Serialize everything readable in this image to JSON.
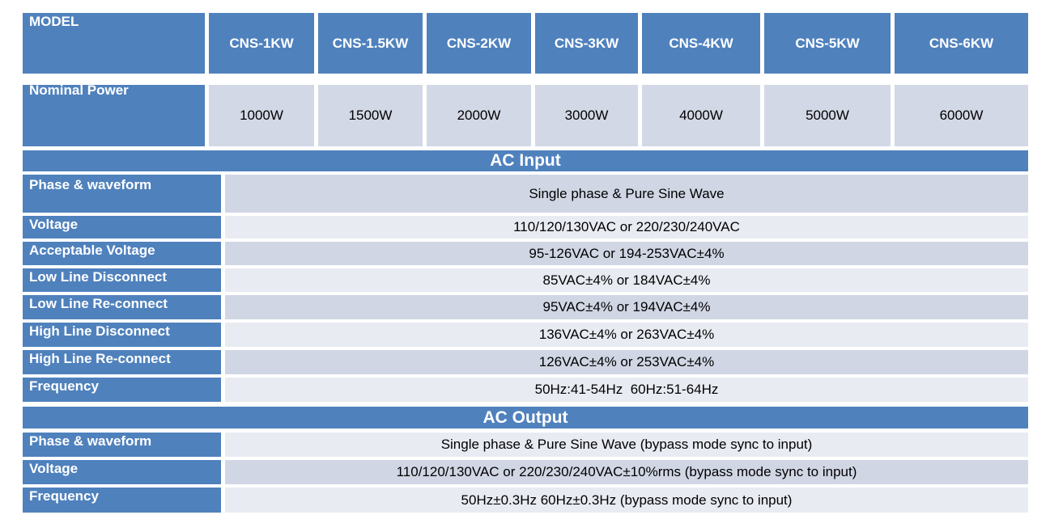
{
  "header": {
    "model_label": "MODEL",
    "power_label": "Nominal Power",
    "models": [
      "CNS-1KW",
      "CNS-1.5KW",
      "CNS-2KW",
      "CNS-3KW",
      "CNS-4KW",
      "CNS-5KW",
      "CNS-6KW"
    ],
    "powers": [
      "1000W",
      "1500W",
      "2000W",
      "3000W",
      "4000W",
      "5000W",
      "6000W"
    ]
  },
  "ac_input": {
    "title": "AC Input",
    "rows": [
      {
        "label": "Phase & waveform",
        "value": "Single phase & Pure Sine Wave"
      },
      {
        "label": "Voltage",
        "value": "110/120/130VAC or 220/230/240VAC"
      },
      {
        "label": "Acceptable Voltage",
        "value": "95-126VAC or 194-253VAC±4%"
      },
      {
        "label": "Low Line Disconnect",
        "value": "85VAC±4% or 184VAC±4%"
      },
      {
        "label": "Low Line Re-connect",
        "value": "95VAC±4% or 194VAC±4%"
      },
      {
        "label": "High Line Disconnect",
        "value": "136VAC±4% or 263VAC±4%"
      },
      {
        "label": "High Line Re-connect",
        "value": "126VAC±4% or 253VAC±4%"
      },
      {
        "label": "Frequency",
        "value": "50Hz:41-54Hz  60Hz:51-64Hz"
      }
    ]
  },
  "ac_output": {
    "title": "AC Output",
    "rows": [
      {
        "label": "Phase & waveform",
        "value": "Single phase & Pure Sine Wave (bypass mode sync to input)"
      },
      {
        "label": "Voltage",
        "value": "110/120/130VAC or 220/230/240VAC±10%rms (bypass mode sync to input)"
      },
      {
        "label": "Frequency",
        "value": "50Hz±0.3Hz 60Hz±0.3Hz (bypass mode sync to input)"
      }
    ]
  }
}
